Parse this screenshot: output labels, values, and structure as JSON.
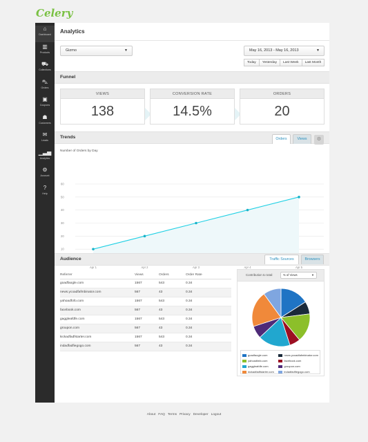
{
  "brand": "Celery",
  "sidebar": {
    "items": [
      {
        "label": "Dashboard",
        "icon": "home-icon",
        "glyph": "⌂"
      },
      {
        "label": "Products",
        "icon": "barcode-icon",
        "glyph": "▥"
      },
      {
        "label": "Collections",
        "icon": "cart-icon",
        "glyph": "⛟"
      },
      {
        "label": "Orders",
        "icon": "truck-icon",
        "glyph": "⛍"
      },
      {
        "label": "Coupons",
        "icon": "ticket-icon",
        "glyph": "▣"
      },
      {
        "label": "Customers",
        "icon": "user-icon",
        "glyph": "☗"
      },
      {
        "label": "Leads",
        "icon": "envelope-icon",
        "glyph": "✉"
      },
      {
        "label": "Analytics",
        "icon": "bar-chart-icon",
        "glyph": "▁▃▅"
      },
      {
        "label": "Account",
        "icon": "gears-icon",
        "glyph": "⚙"
      },
      {
        "label": "Help",
        "icon": "help-icon",
        "glyph": "?"
      }
    ]
  },
  "header": {
    "title": "Analytics"
  },
  "filters": {
    "store": "Gizmo",
    "date_range": "May 16, 2013 - May 16, 2013",
    "quick_ranges": [
      "Today",
      "Yesterday",
      "Last Week",
      "Last Month"
    ]
  },
  "funnel": {
    "title": "Funnel",
    "boxes": [
      {
        "label": "VIEWS",
        "value": "138"
      },
      {
        "label": "CONVERSION RATE",
        "value": "14.5%"
      },
      {
        "label": "ORDERS",
        "value": "20"
      }
    ]
  },
  "trends": {
    "title": "Trends",
    "tabs": [
      "Orders",
      "Views"
    ],
    "chart_title": "Number of Orders by Day"
  },
  "chart_data": {
    "type": "line",
    "title": "Number of Orders by Day",
    "x": [
      "Apr 1",
      "Apr 2",
      "Apr 3",
      "Apr 4",
      "Apr 5"
    ],
    "series": [
      {
        "values": [
          10,
          20,
          30,
          40,
          50
        ]
      }
    ],
    "ylim": [
      0,
      60
    ],
    "yticks": [
      0,
      10,
      20,
      30,
      40,
      50,
      60
    ],
    "grid": true,
    "colors": {
      "line": "#1fd0e4",
      "fill": "#eef8fa"
    }
  },
  "audience": {
    "title": "Audience",
    "tabs": [
      "Traffic Sources",
      "Browsers"
    ],
    "columns": [
      "Referrer",
      "Views",
      "Orders",
      "Order Rate"
    ],
    "rows": [
      [
        "goadfaogle.com",
        "1567",
        "543",
        "0.34"
      ],
      [
        "news.ycoadfafmbinator.com",
        "567",
        "43",
        "0.34"
      ],
      [
        "yahoadfofo.com",
        "1567",
        "543",
        "0.34"
      ],
      [
        "facebook.com",
        "567",
        "43",
        "0.34"
      ],
      [
        "gaggleafdfe.com",
        "1567",
        "543",
        "0.34"
      ],
      [
        "groupon.com",
        "567",
        "43",
        "0.34"
      ],
      [
        "kickadfadfstarter.com",
        "1567",
        "543",
        "0.34"
      ],
      [
        "indadfadfiegogo.com",
        "567",
        "43",
        "0.34"
      ]
    ],
    "pie": {
      "contribution_label": "Contribution to total:",
      "metric": "% of Views",
      "slices": [
        {
          "name": "goadfaogle.com",
          "value": 16,
          "color": "#1f74c4"
        },
        {
          "name": "news.ycoadfafmbinator.com",
          "value": 7,
          "color": "#1a2a3a"
        },
        {
          "name": "yahoadfafo.com",
          "value": 16,
          "color": "#8cbf2a"
        },
        {
          "name": "facebook.com",
          "value": 6,
          "color": "#9c0f22"
        },
        {
          "name": "gaggleafdfe.com",
          "value": 18,
          "color": "#21a7cf"
        },
        {
          "name": "groupon.com",
          "value": 7,
          "color": "#4e2a78"
        },
        {
          "name": "kickadfadfstarter.com",
          "value": 20,
          "color": "#f0893a"
        },
        {
          "name": "indadfadfiegogo.com",
          "value": 10,
          "color": "#7fa6e0"
        }
      ]
    }
  },
  "footer": {
    "links": [
      "About",
      "FAQ",
      "Terms",
      "Privacy",
      "Developer",
      "Logout"
    ]
  }
}
